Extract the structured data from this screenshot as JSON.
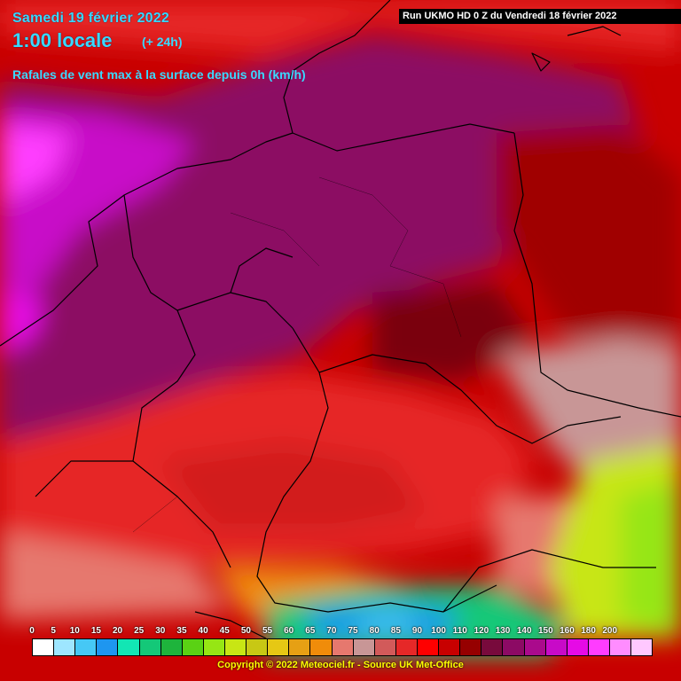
{
  "header": {
    "date": "Samedi 19 février 2022",
    "time": "1:00 locale",
    "lead": "(+ 24h)",
    "parameter": "Rafales de vent max à la surface depuis 0h (km/h)",
    "run": "Run UKMO HD 0 Z du Vendredi 18 février 2022"
  },
  "legend": {
    "labels": [
      "0",
      "5",
      "10",
      "15",
      "20",
      "25",
      "30",
      "35",
      "40",
      "45",
      "50",
      "55",
      "60",
      "65",
      "70",
      "75",
      "80",
      "85",
      "90",
      "100",
      "110",
      "120",
      "130",
      "140",
      "150",
      "160",
      "180",
      "200"
    ],
    "colors": [
      "#ffffff",
      "#9ee6ff",
      "#46c8f5",
      "#1e96f0",
      "#12e6b4",
      "#14c878",
      "#1eb43c",
      "#5ad214",
      "#96e614",
      "#c8e614",
      "#c8c814",
      "#e6c814",
      "#e6a014",
      "#f08c0a",
      "#e6786e",
      "#c89696",
      "#d25a5a",
      "#e62828",
      "#ff0000",
      "#c80000",
      "#960000",
      "#780a3c",
      "#8c0a64",
      "#aa0a8c",
      "#c80ac8",
      "#e60ae6",
      "#ff3cff",
      "#ff8cff",
      "#ffc8ff"
    ]
  },
  "copyright": "Copyright © 2022 Meteociel.fr - Source UK Met-Office"
}
